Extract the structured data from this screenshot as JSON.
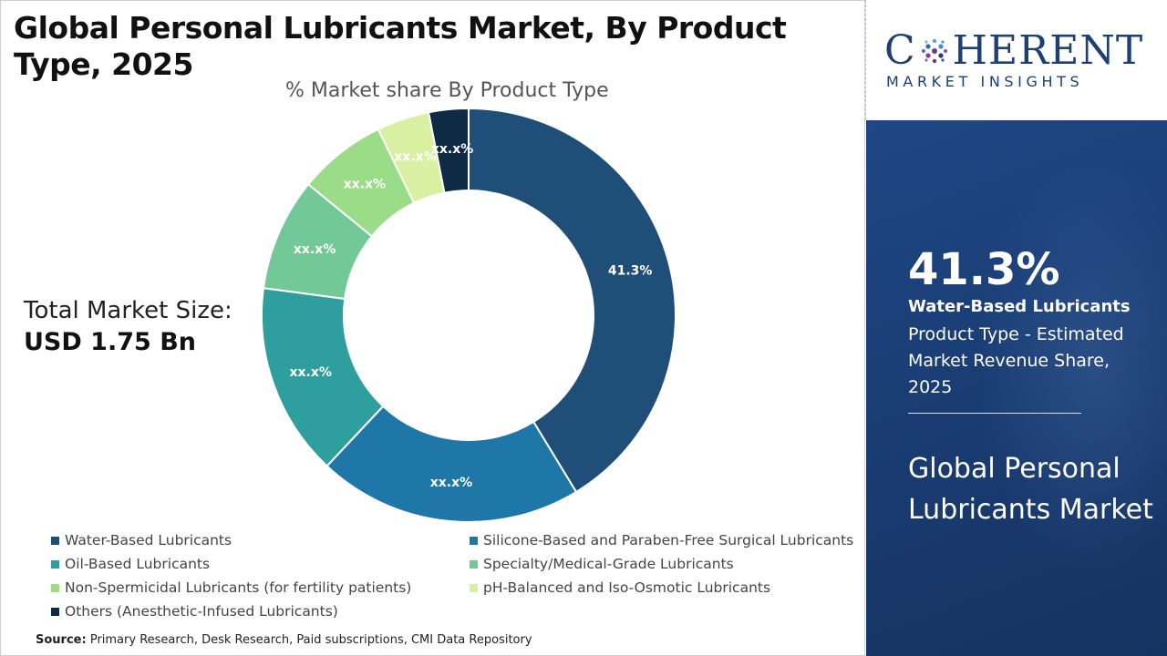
{
  "title": "Global Personal Lubricants Market, By Product Type, 2025",
  "subtitle": "% Market share By Product Type",
  "market_size": {
    "label": "Total Market Size:",
    "value": "USD 1.75 Bn"
  },
  "source": {
    "label": "Source:",
    "text": "Primary Research, Desk Research, Paid subscriptions, CMI Data Repository"
  },
  "logo": {
    "brand_pre": "C",
    "brand_post": "HERENT",
    "tagline": "MARKET INSIGHTS"
  },
  "highlight": {
    "value": "41.3%",
    "segment": "Water-Based Lubricants",
    "description": "Product Type - Estimated Market Revenue Share, 2025",
    "market_name": "Global Personal Lubricants Market"
  },
  "chart_data": {
    "type": "pie",
    "variant": "donut",
    "title": "% Market share By Product Type",
    "legend_position": "bottom",
    "slices": [
      {
        "name": "Water-Based Lubricants",
        "value": 41.3,
        "label": "41.3%",
        "color": "#1f4e79"
      },
      {
        "name": "Silicone-Based and Paraben-Free Surgical Lubricants",
        "value": 20.7,
        "label": "xx.x%",
        "color": "#1f77a8"
      },
      {
        "name": "Oil-Based Lubricants",
        "value": 15.1,
        "label": "xx.x%",
        "color": "#2f9e9e"
      },
      {
        "name": "Specialty/Medical-Grade Lubricants",
        "value": 8.8,
        "label": "xx.x%",
        "color": "#72c997"
      },
      {
        "name": "Non-Spermicidal Lubricants (for fertility patients)",
        "value": 6.9,
        "label": "xx.x%",
        "color": "#9bdc88"
      },
      {
        "name": "pH-Balanced and Iso-Osmotic Lubricants",
        "value": 4.1,
        "label": "xx.x%",
        "color": "#d9f0a3"
      },
      {
        "name": "Others (Anesthetic-Infused Lubricants)",
        "value": 3.1,
        "label": "xx.x%",
        "color": "#0f2a44"
      }
    ]
  }
}
